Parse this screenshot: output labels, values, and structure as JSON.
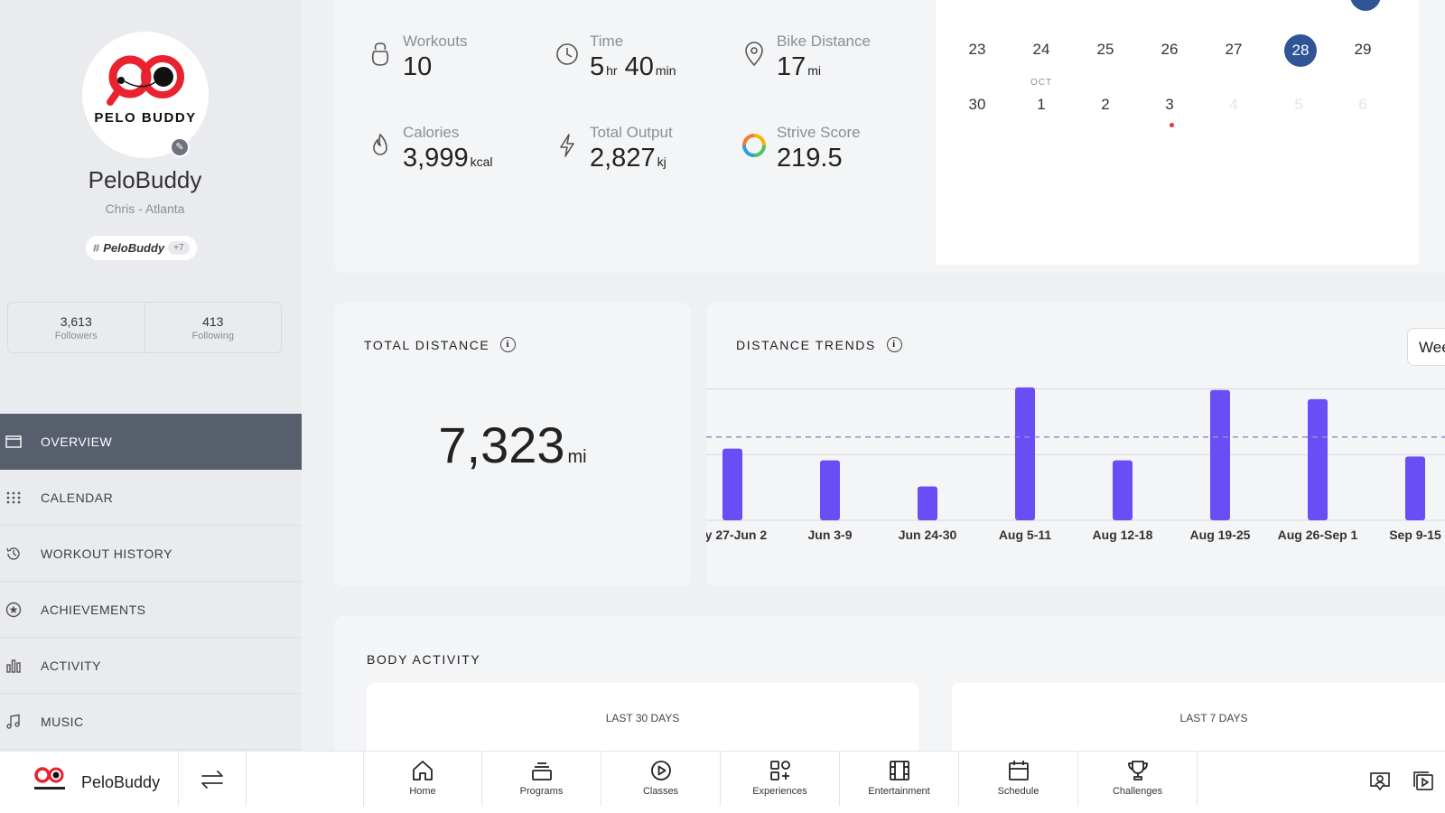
{
  "profile": {
    "logo_text": "PELO BUDDY",
    "name": "PeloBuddy",
    "location": "Chris - Atlanta",
    "tag": "PeloBuddy",
    "tag_extra": "+7",
    "followers_count": "3,613",
    "followers_label": "Followers",
    "following_count": "413",
    "following_label": "Following"
  },
  "nav": [
    {
      "label": "OVERVIEW",
      "icon": "overview-icon",
      "active": true
    },
    {
      "label": "CALENDAR",
      "icon": "calendar-grid-icon",
      "active": false
    },
    {
      "label": "WORKOUT HISTORY",
      "icon": "history-icon",
      "active": false
    },
    {
      "label": "ACHIEVEMENTS",
      "icon": "star-badge-icon",
      "active": false
    },
    {
      "label": "ACTIVITY",
      "icon": "bar-chart-icon",
      "active": false
    },
    {
      "label": "MUSIC",
      "icon": "music-note-icon",
      "active": false
    }
  ],
  "stats": {
    "workouts": {
      "label": "Workouts",
      "value": "10"
    },
    "time": {
      "label": "Time",
      "hours": "5",
      "hours_unit": "hr",
      "minutes": "40",
      "minutes_unit": "min"
    },
    "bike_distance": {
      "label": "Bike Distance",
      "value": "17",
      "unit": "mi"
    },
    "calories": {
      "label": "Calories",
      "value": "3,999",
      "unit": "kcal"
    },
    "total_output": {
      "label": "Total Output",
      "value": "2,827",
      "unit": "kj"
    },
    "strive_score": {
      "label": "Strive Score",
      "value": "219.5"
    }
  },
  "calendar": {
    "week1": [
      "23",
      "24",
      "25",
      "26",
      "27",
      "28",
      "29"
    ],
    "selected_day": "28",
    "month_label": "OCT",
    "week2": [
      "30",
      "1",
      "2",
      "3",
      "4",
      "5",
      "6"
    ]
  },
  "total_distance": {
    "title": "TOTAL DISTANCE",
    "value": "7,323",
    "unit": "mi"
  },
  "distance_trends": {
    "title": "DISTANCE TRENDS",
    "period_select": "Wee"
  },
  "chart_data": {
    "type": "bar",
    "categories": [
      "ay 27-Jun 2",
      "Jun 3-9",
      "Jun 24-30",
      "Aug 5-11",
      "Aug 12-18",
      "Aug 19-25",
      "Aug 26-Sep 1",
      "Sep 9-15"
    ],
    "values": [
      55,
      46,
      26,
      102,
      46,
      100,
      93,
      49
    ],
    "average_line": 64,
    "ylim": [
      0,
      104
    ],
    "grid": true,
    "bar_color": "#6a4ef5",
    "average_line_color": "#8d92c8"
  },
  "body_activity": {
    "title": "BODY ACTIVITY",
    "panel_left": "LAST 30 DAYS",
    "panel_right": "LAST 7 DAYS"
  },
  "bottombar": {
    "name": "PeloBuddy",
    "tabs": [
      {
        "label": "Home",
        "icon": "home-icon"
      },
      {
        "label": "Programs",
        "icon": "programs-icon"
      },
      {
        "label": "Classes",
        "icon": "play-circle-icon"
      },
      {
        "label": "Experiences",
        "icon": "experiences-icon"
      },
      {
        "label": "Entertainment",
        "icon": "film-icon"
      },
      {
        "label": "Schedule",
        "icon": "schedule-icon"
      },
      {
        "label": "Challenges",
        "icon": "trophy-icon"
      }
    ]
  }
}
